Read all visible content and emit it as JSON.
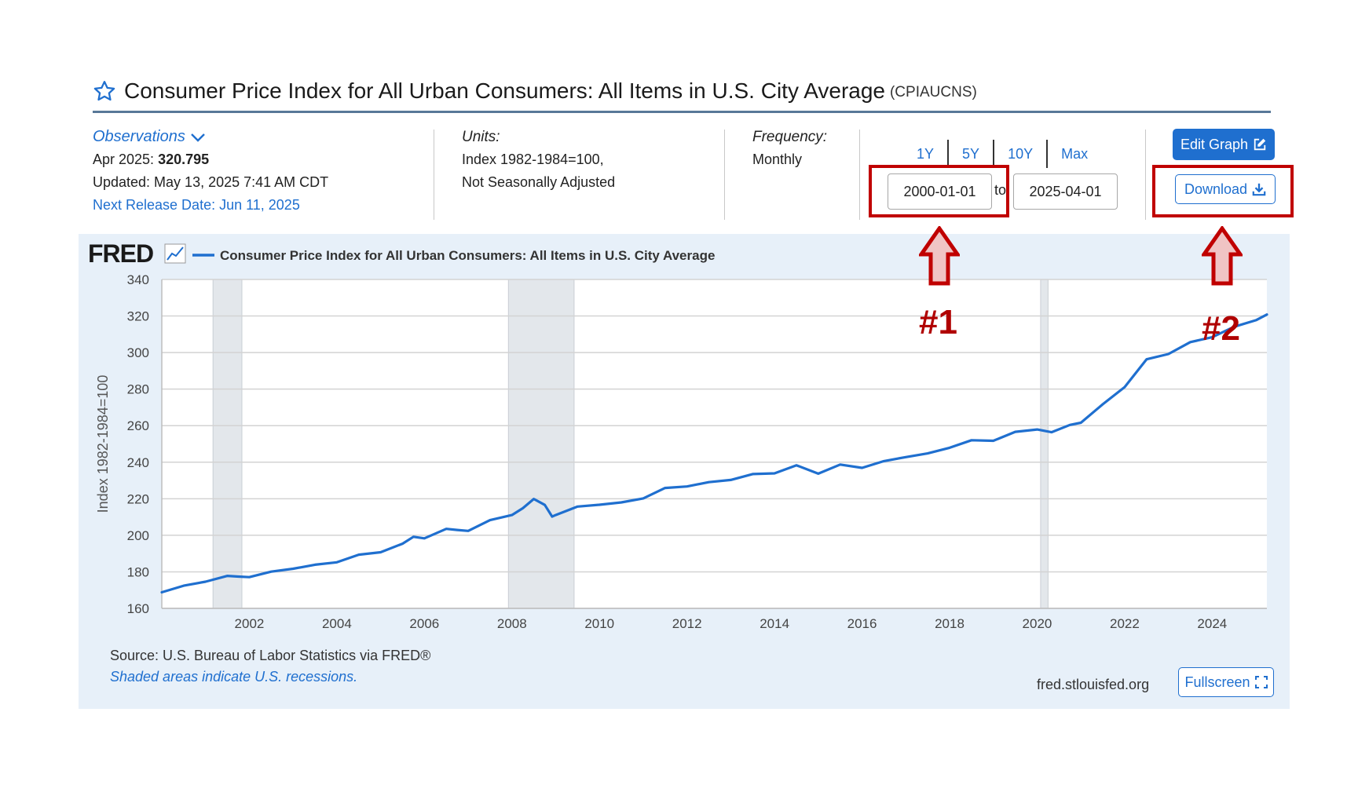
{
  "header": {
    "title": "Consumer Price Index for All Urban Consumers: All Items in U.S. City Average",
    "series_id": "(CPIAUCNS)",
    "star_icon": "star-icon"
  },
  "observations": {
    "toggle_label": "Observations",
    "latest_label": "Apr 2025:",
    "latest_value": "320.795",
    "updated": "Updated: May 13, 2025 7:41 AM CDT",
    "next_release": "Next Release Date: Jun 11, 2025"
  },
  "units": {
    "label": "Units:",
    "line1": "Index 1982-1984=100,",
    "line2": "Not Seasonally Adjusted"
  },
  "frequency": {
    "label": "Frequency:",
    "value": "Monthly"
  },
  "range_buttons": [
    "1Y",
    "5Y",
    "10Y",
    "Max"
  ],
  "date_range": {
    "start": "2000-01-01",
    "to_label": "to",
    "end": "2025-04-01"
  },
  "buttons": {
    "edit_graph": "Edit Graph",
    "download": "Download",
    "fullscreen": "Fullscreen"
  },
  "annotations": {
    "label1": "#1",
    "label2": "#2",
    "color": "#c00000"
  },
  "footer": {
    "source": "Source: U.S. Bureau of Labor Statistics via FRED®",
    "recession_note": "Shaded areas indicate U.S. recessions.",
    "domain": "fred.stlouisfed.org"
  },
  "colors": {
    "accent": "#1f6fcf",
    "panel_bg": "#e7f0f9",
    "recession": "#e3e7eb"
  },
  "chart_data": {
    "type": "line",
    "logo": "FRED",
    "legend": "Consumer Price Index for All Urban Consumers: All Items in U.S. City Average",
    "ylabel": "Index 1982-1984=100",
    "xlim": [
      2000.0,
      2025.25
    ],
    "ylim": [
      160,
      340
    ],
    "y_ticks": [
      160,
      180,
      200,
      220,
      240,
      260,
      280,
      300,
      320,
      340
    ],
    "x_ticks": [
      "2002",
      "2004",
      "2006",
      "2008",
      "2010",
      "2012",
      "2014",
      "2016",
      "2018",
      "2020",
      "2022",
      "2024"
    ],
    "grid": true,
    "recessions": [
      [
        2001.17,
        2001.83
      ],
      [
        2007.92,
        2009.42
      ],
      [
        2020.08,
        2020.25
      ]
    ],
    "series": [
      {
        "name": "Consumer Price Index for All Urban Consumers: All Items in U.S. City Average",
        "color": "#1f6fcf",
        "x": [
          2000.0,
          2000.5,
          2001.0,
          2001.5,
          2001.75,
          2002.0,
          2002.5,
          2003.0,
          2003.5,
          2004.0,
          2004.5,
          2005.0,
          2005.5,
          2005.75,
          2006.0,
          2006.5,
          2006.75,
          2007.0,
          2007.5,
          2008.0,
          2008.25,
          2008.5,
          2008.75,
          2008.92,
          2009.0,
          2009.5,
          2010.0,
          2010.5,
          2011.0,
          2011.5,
          2012.0,
          2012.5,
          2013.0,
          2013.5,
          2014.0,
          2014.5,
          2015.0,
          2015.5,
          2016.0,
          2016.5,
          2017.0,
          2017.5,
          2018.0,
          2018.5,
          2019.0,
          2019.5,
          2020.0,
          2020.33,
          2020.75,
          2021.0,
          2021.5,
          2022.0,
          2022.5,
          2023.0,
          2023.5,
          2024.0,
          2024.5,
          2025.0,
          2025.25
        ],
        "values": [
          168.8,
          172.4,
          174.6,
          177.8,
          177.4,
          177.1,
          180.1,
          181.7,
          183.9,
          185.2,
          189.4,
          190.7,
          195.4,
          199.2,
          198.3,
          203.5,
          202.9,
          202.4,
          208.3,
          211.1,
          214.8,
          219.9,
          216.6,
          210.2,
          211.1,
          215.7,
          216.7,
          218.0,
          220.2,
          225.9,
          226.7,
          229.1,
          230.3,
          233.5,
          233.9,
          238.3,
          233.7,
          238.7,
          236.9,
          240.6,
          242.8,
          244.8,
          247.9,
          252.0,
          251.7,
          256.6,
          257.9,
          256.4,
          260.4,
          261.6,
          271.7,
          281.1,
          296.3,
          299.2,
          305.7,
          308.4,
          314.1,
          317.7,
          320.8
        ]
      }
    ]
  }
}
